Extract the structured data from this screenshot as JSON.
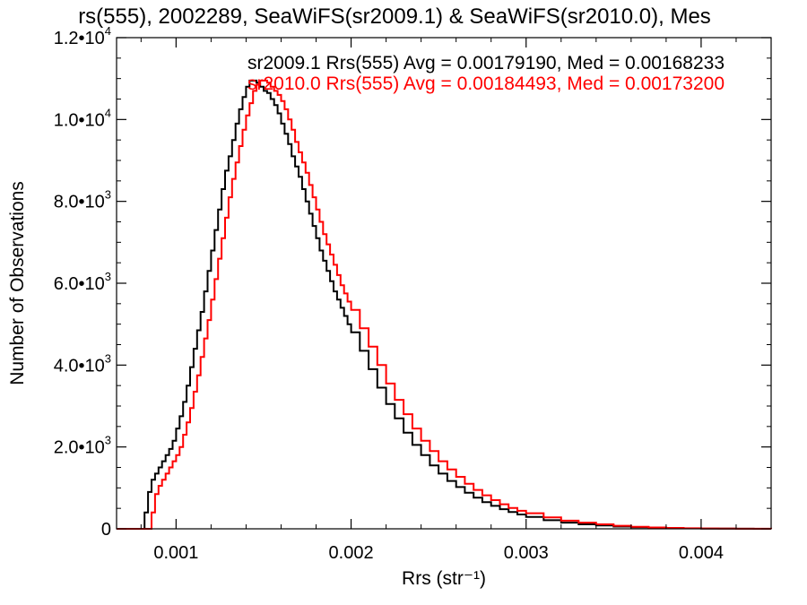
{
  "chart_data": {
    "type": "line",
    "title": "rs(555), 2002289, SeaWiFS(sr2009.1) & SeaWiFS(sr2010.0), Mes",
    "xlabel": "Rrs (str⁻¹)",
    "ylabel": "Number of Observations",
    "xlim": [
      0.00066,
      0.0044
    ],
    "ylim": [
      0,
      12000
    ],
    "x_ticks": [
      {
        "value": 0.001,
        "label": "0.001"
      },
      {
        "value": 0.002,
        "label": "0.002"
      },
      {
        "value": 0.003,
        "label": "0.003"
      },
      {
        "value": 0.004,
        "label": "0.004"
      }
    ],
    "y_ticks": [
      {
        "value": 0,
        "mant": "0",
        "exp": ""
      },
      {
        "value": 2000,
        "mant": "2.0•10",
        "exp": "3"
      },
      {
        "value": 4000,
        "mant": "4.0•10",
        "exp": "3"
      },
      {
        "value": 6000,
        "mant": "6.0•10",
        "exp": "3"
      },
      {
        "value": 8000,
        "mant": "8.0•10",
        "exp": "3"
      },
      {
        "value": 10000,
        "mant": "1.0•10",
        "exp": "4"
      },
      {
        "value": 12000,
        "mant": "1.2•10",
        "exp": "4"
      }
    ],
    "annotations": [
      {
        "text": "sr2009.1 Rrs(555) Avg = 0.00179190, Med = 0.00168233",
        "color": "#000000"
      },
      {
        "text": "sr2010.0 Rrs(555) Avg = 0.00184493, Med = 0.00173200",
        "color": "#ff0000"
      }
    ],
    "grid": false,
    "series": [
      {
        "color": "#000000",
        "x": [
          0.00066,
          0.0008,
          0.00082,
          0.00084,
          0.00086,
          0.00088,
          0.0009,
          0.00092,
          0.00094,
          0.00096,
          0.00098,
          0.001,
          0.00102,
          0.00104,
          0.00106,
          0.00108,
          0.0011,
          0.00112,
          0.00114,
          0.00116,
          0.00118,
          0.0012,
          0.00122,
          0.00124,
          0.00126,
          0.00128,
          0.0013,
          0.00132,
          0.00134,
          0.00136,
          0.00138,
          0.0014,
          0.00142,
          0.00144,
          0.00146,
          0.00148,
          0.0015,
          0.00152,
          0.00154,
          0.00156,
          0.00158,
          0.0016,
          0.00162,
          0.00164,
          0.00166,
          0.00168,
          0.0017,
          0.00172,
          0.00174,
          0.00176,
          0.00178,
          0.0018,
          0.00182,
          0.00184,
          0.00186,
          0.00188,
          0.0019,
          0.00192,
          0.00194,
          0.00196,
          0.00198,
          0.002,
          0.00205,
          0.0021,
          0.00215,
          0.0022,
          0.00225,
          0.0023,
          0.00235,
          0.0024,
          0.00245,
          0.0025,
          0.00255,
          0.0026,
          0.00265,
          0.0027,
          0.00275,
          0.0028,
          0.00285,
          0.0029,
          0.00295,
          0.003,
          0.0031,
          0.0032,
          0.0033,
          0.0034,
          0.0035,
          0.0036,
          0.0037,
          0.0038,
          0.0039,
          0.004,
          0.0041,
          0.0042,
          0.0043,
          0.0044
        ],
        "y": [
          0,
          0,
          400,
          900,
          1200,
          1350,
          1500,
          1650,
          1800,
          1950,
          2150,
          2450,
          2750,
          3100,
          3500,
          3950,
          4400,
          4850,
          5300,
          5800,
          6300,
          6800,
          7300,
          7800,
          8300,
          8750,
          9100,
          9500,
          9900,
          10250,
          10550,
          10800,
          10950,
          10950,
          10900,
          10800,
          10700,
          10650,
          10500,
          10350,
          10150,
          9900,
          9650,
          9400,
          9100,
          8850,
          8600,
          8300,
          8000,
          7700,
          7400,
          7100,
          6800,
          6550,
          6300,
          6050,
          5800,
          5600,
          5400,
          5200,
          5000,
          4800,
          4350,
          3900,
          3450,
          3050,
          2700,
          2350,
          2050,
          1800,
          1550,
          1350,
          1170,
          1020,
          880,
          760,
          650,
          560,
          480,
          410,
          350,
          290,
          210,
          150,
          110,
          80,
          55,
          38,
          25,
          16,
          10,
          6,
          4,
          2,
          1,
          0
        ]
      },
      {
        "color": "#ff0000",
        "x": [
          0.00066,
          0.00084,
          0.00086,
          0.00088,
          0.0009,
          0.00092,
          0.00094,
          0.00096,
          0.00098,
          0.001,
          0.00102,
          0.00104,
          0.00106,
          0.00108,
          0.0011,
          0.00112,
          0.00114,
          0.00116,
          0.00118,
          0.0012,
          0.00122,
          0.00124,
          0.00126,
          0.00128,
          0.0013,
          0.00132,
          0.00134,
          0.00136,
          0.00138,
          0.0014,
          0.00142,
          0.00144,
          0.00146,
          0.00148,
          0.0015,
          0.00152,
          0.00154,
          0.00156,
          0.00158,
          0.0016,
          0.00162,
          0.00164,
          0.00166,
          0.00168,
          0.0017,
          0.00172,
          0.00174,
          0.00176,
          0.00178,
          0.0018,
          0.00182,
          0.00184,
          0.00186,
          0.00188,
          0.0019,
          0.00192,
          0.00194,
          0.00196,
          0.00198,
          0.002,
          0.00205,
          0.0021,
          0.00215,
          0.0022,
          0.00225,
          0.0023,
          0.00235,
          0.0024,
          0.00245,
          0.0025,
          0.00255,
          0.0026,
          0.00265,
          0.0027,
          0.00275,
          0.0028,
          0.00285,
          0.0029,
          0.00295,
          0.003,
          0.0031,
          0.0032,
          0.0033,
          0.0034,
          0.0035,
          0.0036,
          0.0037,
          0.0038,
          0.0039,
          0.004,
          0.0041,
          0.0042,
          0.0043,
          0.0044
        ],
        "y": [
          0,
          0,
          400,
          850,
          1050,
          1200,
          1350,
          1500,
          1650,
          1800,
          2000,
          2300,
          2600,
          2950,
          3350,
          3750,
          4200,
          4650,
          5100,
          5600,
          6100,
          6600,
          7100,
          7600,
          8100,
          8550,
          8950,
          9350,
          9750,
          10100,
          10400,
          10700,
          10850,
          10950,
          10950,
          10900,
          10800,
          10700,
          10600,
          10450,
          10250,
          10000,
          9750,
          9450,
          9200,
          8950,
          8700,
          8400,
          8100,
          7800,
          7500,
          7200,
          6950,
          6700,
          6450,
          6200,
          5950,
          5750,
          5550,
          5350,
          4900,
          4450,
          4000,
          3550,
          3150,
          2800,
          2450,
          2150,
          1900,
          1650,
          1450,
          1270,
          1100,
          950,
          820,
          700,
          600,
          510,
          440,
          380,
          280,
          200,
          150,
          110,
          75,
          50,
          33,
          22,
          14,
          9,
          6,
          3,
          2,
          0
        ]
      }
    ]
  }
}
